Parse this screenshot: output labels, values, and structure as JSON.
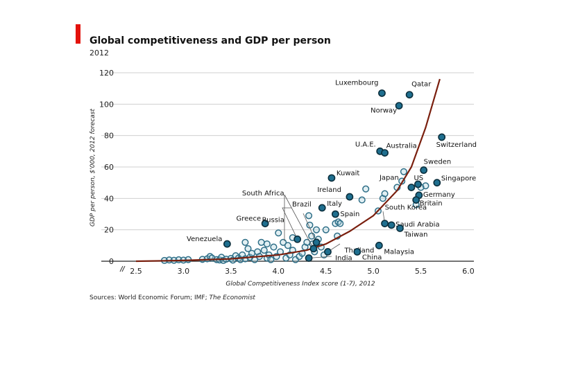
{
  "chart_data": {
    "type": "scatter",
    "title": "Global competitiveness and GDP per person",
    "subtitle": "2012",
    "xlabel": "Global Competitiveness Index score (1-7), 2012",
    "ylabel": "GDP per person, $'000, 2012 forecast",
    "source_prefix": "Sources: World Economic Forum; IMF; ",
    "source_italic": "The Economist",
    "x_ticks": [
      "2.5",
      "3.0",
      "3.5",
      "4.0",
      "4.5",
      "5.0",
      "5.5",
      "6.0"
    ],
    "y_ticks": [
      "0",
      "20",
      "40",
      "60",
      "80",
      "100",
      "120"
    ],
    "xlim": [
      2.5,
      6.0
    ],
    "ylim": [
      0,
      120
    ],
    "grid": true,
    "colors": {
      "accent": "#e3120b",
      "curve": "#7a1f0e",
      "dot_fill": "#a9d0dc",
      "dot_stroke": "#2e6e87",
      "hl_fill": "#1f6f8f",
      "hl_stroke": "#0b2e3c",
      "grid": "#cfcfcf"
    },
    "curve": [
      [
        2.5,
        0
      ],
      [
        3.0,
        0.5
      ],
      [
        3.5,
        1.5
      ],
      [
        4.0,
        4
      ],
      [
        4.3,
        7
      ],
      [
        4.5,
        11
      ],
      [
        4.75,
        19
      ],
      [
        5.0,
        29
      ],
      [
        5.25,
        45
      ],
      [
        5.4,
        60
      ],
      [
        5.55,
        85
      ],
      [
        5.7,
        116
      ]
    ],
    "countries": [
      {
        "name": "Luxembourg",
        "x": 5.09,
        "y": 107
      },
      {
        "name": "Qatar",
        "x": 5.38,
        "y": 106
      },
      {
        "name": "Norway",
        "x": 5.27,
        "y": 99
      },
      {
        "name": "Switzerland",
        "x": 5.72,
        "y": 79
      },
      {
        "name": "U.A.E.",
        "x": 5.07,
        "y": 70
      },
      {
        "name": "Australia",
        "x": 5.12,
        "y": 69
      },
      {
        "name": "Sweden",
        "x": 5.53,
        "y": 58
      },
      {
        "name": "Kuwait",
        "x": 4.56,
        "y": 53
      },
      {
        "name": "Singapore",
        "x": 5.67,
        "y": 50
      },
      {
        "name": "US",
        "x": 5.47,
        "y": 49
      },
      {
        "name": "Japan",
        "x": 5.4,
        "y": 47
      },
      {
        "name": "Ireland",
        "x": 4.75,
        "y": 41
      },
      {
        "name": "Germany",
        "x": 5.48,
        "y": 42
      },
      {
        "name": "Britain",
        "x": 5.45,
        "y": 39
      },
      {
        "name": "Italy",
        "x": 4.46,
        "y": 34
      },
      {
        "name": "Spain",
        "x": 4.6,
        "y": 30
      },
      {
        "name": "Saudi Arabia",
        "x": 5.19,
        "y": 23
      },
      {
        "name": "South Korea",
        "x": 5.12,
        "y": 24
      },
      {
        "name": "Greece",
        "x": 3.86,
        "y": 24
      },
      {
        "name": "Taiwan",
        "x": 5.28,
        "y": 21
      },
      {
        "name": "Russia",
        "x": 4.2,
        "y": 14
      },
      {
        "name": "Brazil",
        "x": 4.4,
        "y": 12
      },
      {
        "name": "Venezuela",
        "x": 3.46,
        "y": 11
      },
      {
        "name": "South Africa",
        "x": 4.37,
        "y": 8
      },
      {
        "name": "Malaysia",
        "x": 5.06,
        "y": 10
      },
      {
        "name": "Thailand",
        "x": 4.52,
        "y": 6
      },
      {
        "name": "China",
        "x": 4.83,
        "y": 6
      },
      {
        "name": "India",
        "x": 4.32,
        "y": 2
      }
    ],
    "others": [
      [
        2.8,
        0.5
      ],
      [
        2.85,
        0.8
      ],
      [
        2.9,
        0.6
      ],
      [
        2.95,
        0.9
      ],
      [
        3.0,
        0.7
      ],
      [
        3.05,
        1.0
      ],
      [
        3.2,
        1.2
      ],
      [
        3.25,
        1.5
      ],
      [
        3.28,
        3
      ],
      [
        3.3,
        2
      ],
      [
        3.35,
        1
      ],
      [
        3.38,
        0.8
      ],
      [
        3.4,
        2.5
      ],
      [
        3.42,
        0.5
      ],
      [
        3.45,
        1.3
      ],
      [
        3.5,
        1.8
      ],
      [
        3.52,
        0.7
      ],
      [
        3.55,
        3.5
      ],
      [
        3.58,
        2
      ],
      [
        3.6,
        1
      ],
      [
        3.62,
        4
      ],
      [
        3.65,
        1.5
      ],
      [
        3.65,
        12
      ],
      [
        3.68,
        8
      ],
      [
        3.7,
        2.5
      ],
      [
        3.72,
        5
      ],
      [
        3.75,
        1
      ],
      [
        3.78,
        6
      ],
      [
        3.8,
        3
      ],
      [
        3.82,
        12
      ],
      [
        3.85,
        7
      ],
      [
        3.88,
        11
      ],
      [
        3.88,
        2
      ],
      [
        3.9,
        4
      ],
      [
        3.92,
        1
      ],
      [
        3.95,
        9
      ],
      [
        3.98,
        3
      ],
      [
        4.0,
        18
      ],
      [
        4.02,
        6
      ],
      [
        4.05,
        12
      ],
      [
        4.08,
        2
      ],
      [
        4.1,
        10
      ],
      [
        4.12,
        4
      ],
      [
        4.15,
        15
      ],
      [
        4.15,
        7
      ],
      [
        4.18,
        1
      ],
      [
        4.22,
        3
      ],
      [
        4.25,
        5
      ],
      [
        4.28,
        9
      ],
      [
        4.3,
        12
      ],
      [
        4.32,
        29
      ],
      [
        4.33,
        23
      ],
      [
        4.35,
        16
      ],
      [
        4.36,
        11
      ],
      [
        4.38,
        6
      ],
      [
        4.4,
        20
      ],
      [
        4.42,
        14
      ],
      [
        4.45,
        9
      ],
      [
        4.48,
        4
      ],
      [
        4.5,
        20
      ],
      [
        4.6,
        24
      ],
      [
        4.62,
        16
      ],
      [
        4.63,
        25
      ],
      [
        4.65,
        24
      ],
      [
        4.88,
        39
      ],
      [
        4.92,
        46
      ],
      [
        5.05,
        32
      ],
      [
        5.1,
        40
      ],
      [
        5.12,
        43
      ],
      [
        5.25,
        47
      ],
      [
        5.3,
        51
      ],
      [
        5.32,
        57
      ],
      [
        5.45,
        36
      ],
      [
        5.55,
        48
      ],
      [
        5.5,
        47
      ]
    ]
  }
}
